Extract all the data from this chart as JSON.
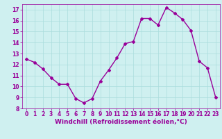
{
  "x": [
    0,
    1,
    2,
    3,
    4,
    5,
    6,
    7,
    8,
    9,
    10,
    11,
    12,
    13,
    14,
    15,
    16,
    17,
    18,
    19,
    20,
    21,
    22,
    23
  ],
  "y": [
    12.5,
    12.2,
    11.6,
    10.8,
    10.2,
    10.2,
    8.9,
    8.5,
    8.9,
    10.5,
    11.5,
    12.6,
    13.9,
    14.1,
    16.2,
    16.2,
    15.6,
    17.2,
    16.7,
    16.1,
    15.1,
    12.3,
    11.7,
    9.0
  ],
  "line_color": "#990099",
  "marker": "D",
  "marker_size": 2,
  "bg_color": "#cff0f0",
  "grid_color": "#aadddd",
  "xlabel": "Windchill (Refroidissement éolien,°C)",
  "xlabel_color": "#990099",
  "tick_color": "#990099",
  "ylim": [
    8,
    17.5
  ],
  "yticks": [
    8,
    9,
    10,
    11,
    12,
    13,
    14,
    15,
    16,
    17
  ],
  "xlim": [
    -0.5,
    23.5
  ],
  "xticks": [
    0,
    1,
    2,
    3,
    4,
    5,
    6,
    7,
    8,
    9,
    10,
    11,
    12,
    13,
    14,
    15,
    16,
    17,
    18,
    19,
    20,
    21,
    22,
    23
  ],
  "tick_fontsize": 5.5,
  "xlabel_fontsize": 6.5,
  "line_width": 1.0
}
